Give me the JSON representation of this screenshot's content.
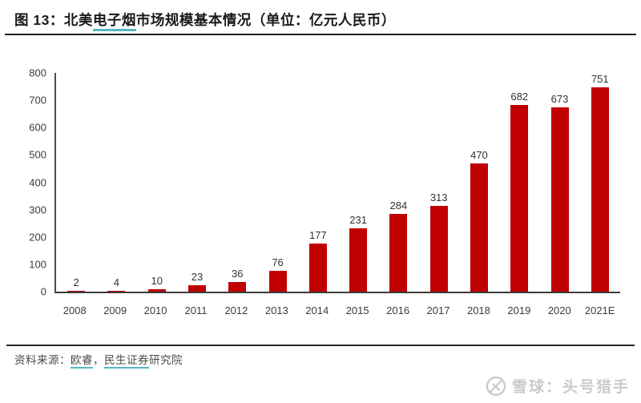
{
  "header": {
    "title_prefix": "图 13：北美",
    "title_highlight": "电子烟",
    "title_suffix": "市场规模基本情况（单位：亿元人民币）"
  },
  "chart_data": {
    "type": "bar",
    "title": "北美电子烟市场规模基本情况",
    "unit": "亿元人民币",
    "categories": [
      "2008",
      "2009",
      "2010",
      "2011",
      "2012",
      "2013",
      "2014",
      "2015",
      "2016",
      "2017",
      "2018",
      "2019",
      "2020",
      "2021E"
    ],
    "values": [
      2,
      4,
      10,
      23,
      36,
      76,
      177,
      231,
      284,
      313,
      470,
      682,
      673,
      751
    ],
    "xlabel": "",
    "ylabel": "",
    "ylim": [
      0,
      800
    ],
    "ytick_step": 100,
    "grid": false,
    "legend": false,
    "bar_color": "#c00000",
    "data_labels": true
  },
  "footer": {
    "source_label": "资料来源：",
    "source_link_1": "欧睿",
    "separator": "，",
    "source_link_2": "民生证券",
    "source_suffix": "研究院"
  },
  "watermark": {
    "icon": "snowball-logo",
    "text": "雪球：头号猎手"
  },
  "colors": {
    "bar": "#c00000",
    "accent_underline": "#54b9c5",
    "rule": "#1f1f1f",
    "axis": "#3c3c3c",
    "watermark": "#cbcbcb"
  }
}
